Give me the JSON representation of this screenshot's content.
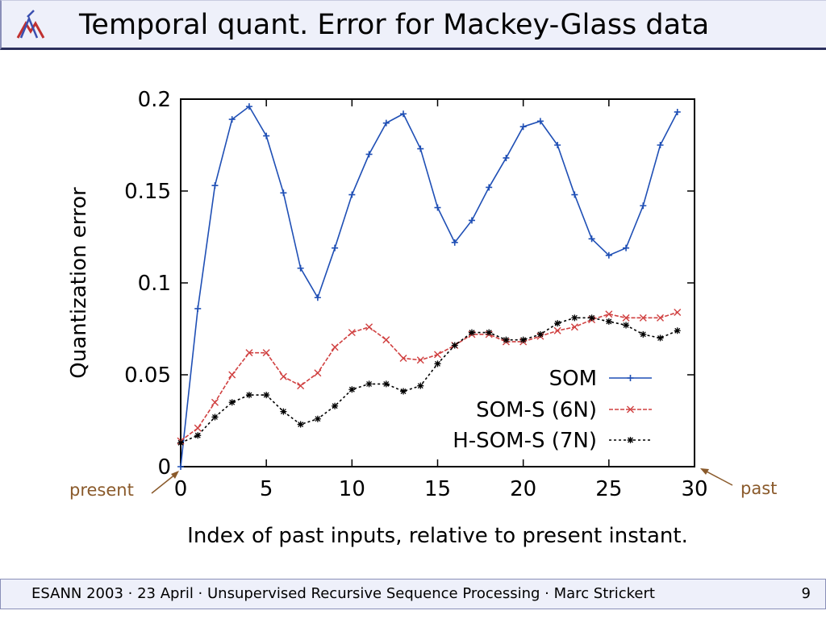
{
  "header": {
    "title": "Temporal quant. Error for Mackey-Glass data"
  },
  "footer": {
    "text": "ESANN 2003  ·  23 April  ·  Unsupervised Recursive Sequence Processing  ·  Marc Strickert",
    "page": "9"
  },
  "annotations": {
    "present": "present",
    "past": "past"
  },
  "colors": {
    "annotation": "#8a5a2b",
    "som": "#1f4fb5",
    "soms": "#d04040",
    "hsoms": "#000000"
  },
  "chart_data": {
    "type": "line",
    "title": "",
    "xlabel": "Index of past inputs, relative to present instant.",
    "ylabel": "Quantization error",
    "xlim": [
      0,
      30
    ],
    "ylim": [
      0,
      0.2
    ],
    "xticks": [
      0,
      5,
      10,
      15,
      20,
      25,
      30
    ],
    "yticks": [
      0,
      0.05,
      0.1,
      0.15,
      0.2
    ],
    "legend_position": "lower-right",
    "grid": false,
    "series": [
      {
        "name": "SOM",
        "color": "#1f4fb5",
        "marker": "plus",
        "x": [
          0,
          1,
          2,
          3,
          4,
          5,
          6,
          7,
          8,
          9,
          10,
          11,
          12,
          13,
          14,
          15,
          16,
          17,
          18,
          19,
          20,
          21,
          22,
          23,
          24,
          25,
          26,
          27,
          28,
          29
        ],
        "y": [
          0,
          0.086,
          0.153,
          0.189,
          0.196,
          0.18,
          0.149,
          0.108,
          0.092,
          0.119,
          0.148,
          0.17,
          0.187,
          0.192,
          0.173,
          0.141,
          0.122,
          0.134,
          0.152,
          0.168,
          0.185,
          0.188,
          0.175,
          0.148,
          0.124,
          0.115,
          0.119,
          0.142,
          0.175,
          0.193
        ]
      },
      {
        "name": "SOM-S (6N)",
        "color": "#d04040",
        "marker": "cross",
        "x": [
          0,
          1,
          2,
          3,
          4,
          5,
          6,
          7,
          8,
          9,
          10,
          11,
          12,
          13,
          14,
          15,
          16,
          17,
          18,
          19,
          20,
          21,
          22,
          23,
          24,
          25,
          26,
          27,
          28,
          29
        ],
        "y": [
          0.014,
          0.021,
          0.035,
          0.05,
          0.062,
          0.062,
          0.049,
          0.044,
          0.051,
          0.065,
          0.073,
          0.076,
          0.069,
          0.059,
          0.058,
          0.061,
          0.066,
          0.072,
          0.072,
          0.068,
          0.068,
          0.071,
          0.074,
          0.076,
          0.08,
          0.083,
          0.081,
          0.081,
          0.081,
          0.084
        ]
      },
      {
        "name": "H-SOM-S (7N)",
        "color": "#000000",
        "marker": "star",
        "x": [
          0,
          1,
          2,
          3,
          4,
          5,
          6,
          7,
          8,
          9,
          10,
          11,
          12,
          13,
          14,
          15,
          16,
          17,
          18,
          19,
          20,
          21,
          22,
          23,
          24,
          25,
          26,
          27,
          28,
          29
        ],
        "y": [
          0.013,
          0.017,
          0.027,
          0.035,
          0.039,
          0.039,
          0.03,
          0.023,
          0.026,
          0.033,
          0.042,
          0.045,
          0.045,
          0.041,
          0.044,
          0.056,
          0.066,
          0.073,
          0.073,
          0.069,
          0.069,
          0.072,
          0.078,
          0.081,
          0.081,
          0.079,
          0.077,
          0.072,
          0.07,
          0.074
        ]
      }
    ]
  }
}
